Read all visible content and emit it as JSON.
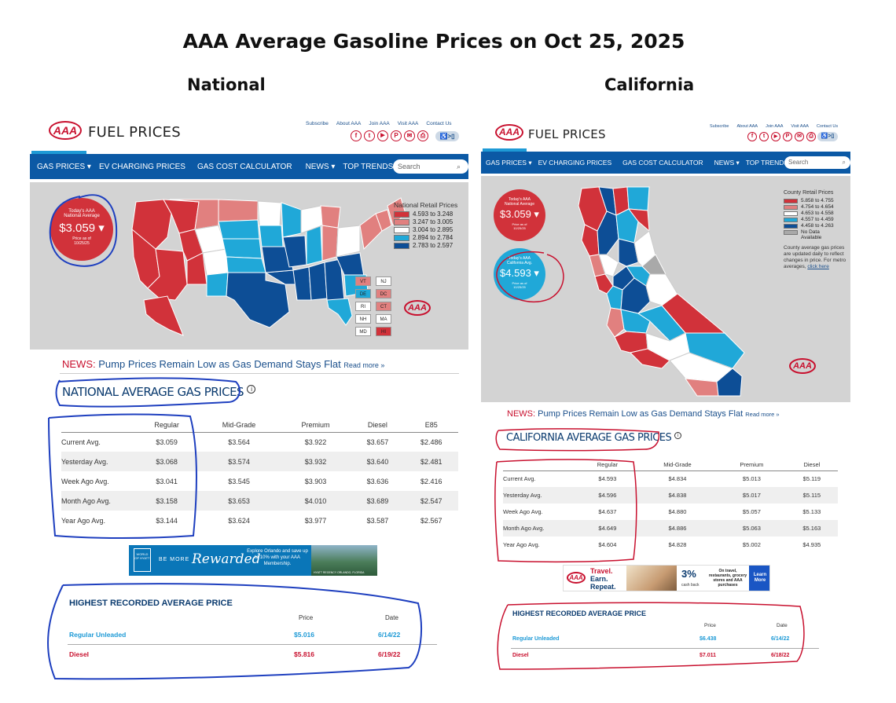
{
  "title": "AAA Average Gasoline Prices on Oct 25, 2025",
  "regions": {
    "left": "National",
    "right": "California"
  },
  "common": {
    "site_title": "FUEL PRICES",
    "logo": "AAA",
    "links": [
      "Subscribe",
      "About AAA",
      "Join AAA",
      "Visit AAA",
      "Contact Us"
    ],
    "social_icons": [
      "f",
      "t",
      "▶",
      "P",
      "✉",
      "⎙"
    ],
    "accessibility": "♿>▯",
    "nav": [
      "GAS PRICES ▾",
      "EV CHARGING PRICES",
      "GAS COST CALCULATOR",
      "NEWS ▾",
      "TOP TRENDS"
    ],
    "search_placeholder": "Search",
    "search_icon": "magnifier-icon",
    "news_label": "NEWS:",
    "news_text": "Pump Prices Remain Low as Gas Demand Stays Flat",
    "news_more": "Read more »",
    "info_icon": "i",
    "highest_title": "HIGHEST RECORDED AVERAGE PRICE",
    "price_header": "Price",
    "date_header": "Date"
  },
  "national": {
    "badge": {
      "line1": "Today's AAA",
      "line2": "National Average",
      "price": "$3.059 ▾",
      "asof": "Price as of",
      "date": "10/25/25"
    },
    "legend_title": "National Retail Prices",
    "legend": [
      {
        "label": "4.593 to 3.248",
        "color": "#d1323a"
      },
      {
        "label": "3.247 to 3.005",
        "color": "#e1807f"
      },
      {
        "label": "3.004 to 2.895",
        "color": "#ffffff"
      },
      {
        "label": "2.894 to 2.784",
        "color": "#20a8d8"
      },
      {
        "label": "2.783 to 2.597",
        "color": "#0d4e96"
      }
    ],
    "small_states": [
      {
        "code": "VT",
        "color": "#e1807f"
      },
      {
        "code": "NJ",
        "color": "#ffffff"
      },
      {
        "code": "DE",
        "color": "#20a8d8"
      },
      {
        "code": "DC",
        "color": "#e1807f"
      },
      {
        "code": "RI",
        "color": "#ffffff"
      },
      {
        "code": "CT",
        "color": "#e1807f"
      },
      {
        "code": "NH",
        "color": "#ffffff"
      },
      {
        "code": "MA",
        "color": "#ffffff"
      },
      {
        "code": "MD",
        "color": "#ffffff"
      },
      {
        "code": "HI",
        "color": "#d1323a"
      }
    ],
    "section_title": "NATIONAL AVERAGE GAS PRICES",
    "table": {
      "headers": [
        "",
        "Regular",
        "Mid-Grade",
        "Premium",
        "Diesel",
        "E85"
      ],
      "rows": [
        [
          "Current Avg.",
          "$3.059",
          "$3.564",
          "$3.922",
          "$3.657",
          "$2.486"
        ],
        [
          "Yesterday Avg.",
          "$3.068",
          "$3.574",
          "$3.932",
          "$3.640",
          "$2.481"
        ],
        [
          "Week Ago Avg.",
          "$3.041",
          "$3.545",
          "$3.903",
          "$3.636",
          "$2.416"
        ],
        [
          "Month Ago Avg.",
          "$3.158",
          "$3.653",
          "$4.010",
          "$3.689",
          "$2.547"
        ],
        [
          "Year Ago Avg.",
          "$3.144",
          "$3.624",
          "$3.977",
          "$3.587",
          "$2.567"
        ]
      ]
    },
    "ad": {
      "brand1": "WORLD OF HYATT",
      "brand2": "BE MORE",
      "script": "Rewarded",
      "copy": "Explore Orlando and save up to 10% with your AAA Membership.",
      "caption": "HYATT REGENCY ORLANDO, FLORIDA"
    },
    "highest": [
      {
        "label": "Regular Unleaded",
        "price": "$5.016",
        "date": "6/14/22"
      },
      {
        "label": "Diesel",
        "price": "$5.816",
        "date": "6/19/22"
      }
    ]
  },
  "california": {
    "badge_national": {
      "line1": "Today's AAA",
      "line2": "National Average",
      "price": "$3.059 ▾",
      "asof": "Price as of",
      "date": "10/25/25"
    },
    "badge_state": {
      "line1": "Today's AAA",
      "line2": "California Avg.",
      "price": "$4.593 ▾",
      "asof": "Price as of",
      "date": "10/25/25"
    },
    "legend_title": "County Retail Prices",
    "legend": [
      {
        "label": "5.858 to 4.755",
        "color": "#d1323a"
      },
      {
        "label": "4.754 to 4.654",
        "color": "#e1807f"
      },
      {
        "label": "4.653 to 4.558",
        "color": "#ffffff"
      },
      {
        "label": "4.557 to 4.459",
        "color": "#20a8d8"
      },
      {
        "label": "4.458 to 4.263",
        "color": "#0d4e96"
      },
      {
        "label": "No Data Available",
        "color": "#a9a9a9"
      }
    ],
    "note": "County average gas prices are updated daily to reflect changes in price. For metro averages,",
    "note_link": "click here",
    "section_title": "CALIFORNIA AVERAGE GAS PRICES",
    "table": {
      "headers": [
        "",
        "Regular",
        "Mid-Grade",
        "Premium",
        "Diesel"
      ],
      "rows": [
        [
          "Current Avg.",
          "$4.593",
          "$4.834",
          "$5.013",
          "$5.119"
        ],
        [
          "Yesterday Avg.",
          "$4.596",
          "$4.838",
          "$5.017",
          "$5.115"
        ],
        [
          "Week Ago Avg.",
          "$4.637",
          "$4.880",
          "$5.057",
          "$5.133"
        ],
        [
          "Month Ago Avg.",
          "$4.649",
          "$4.886",
          "$5.063",
          "$5.163"
        ],
        [
          "Year Ago Avg.",
          "$4.604",
          "$4.828",
          "$5.002",
          "$4.935"
        ]
      ]
    },
    "ad": {
      "logo": "AAA",
      "t1": "Travel.",
      "t2": "Earn.",
      "t3": "Repeat.",
      "pct": "3%",
      "cashback": "cash back",
      "desc": "On travel, restaurants, grocery stores and AAA purchases",
      "cta": "Learn More"
    },
    "highest": [
      {
        "label": "Regular Unleaded",
        "price": "$6.438",
        "date": "6/14/22"
      },
      {
        "label": "Diesel",
        "price": "$7.011",
        "date": "6/18/22"
      }
    ]
  }
}
